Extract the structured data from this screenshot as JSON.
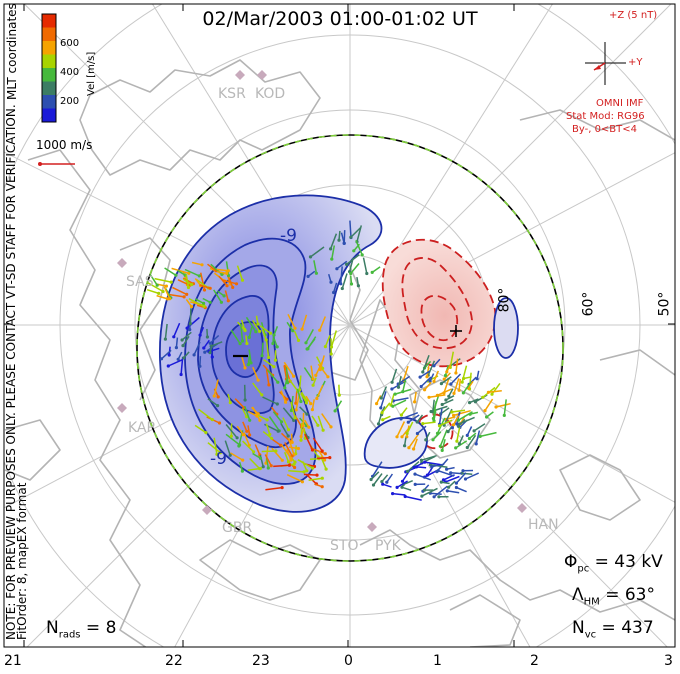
{
  "title": "02/Mar/2003 01:00-01:02 UT",
  "coordinates_label": "MLT coordinates",
  "note_line1": "NOTE: FOR PREVIEW PURPOSES ONLY. PLEASE CONTACT VT-SD STAFF FOR VERIFICATION.",
  "note_line2": "FitOrder: 8, mapEX format",
  "colorbar": {
    "label": "Vel [m/s]",
    "ticks": [
      "600",
      "400",
      "200"
    ],
    "colors": [
      "#e52a00",
      "#f06a00",
      "#f5a300",
      "#a8d400",
      "#46b93c",
      "#3c7d64",
      "#2d4fb0",
      "#1a1ad8"
    ]
  },
  "reference_vector": "1000 m/s",
  "imf": {
    "z_label": "+Z (5 nT)",
    "y_label": "+Y",
    "source": "OMNI IMF",
    "model": "Stat Mod: RG96",
    "condition": "By-, 0<BT<4"
  },
  "stations": [
    "KSR",
    "KOD",
    "SAS",
    "KAP",
    "GBR",
    "STO",
    "PYK",
    "HAN"
  ],
  "latitude_labels": [
    "60°",
    "50°",
    "80°"
  ],
  "contour_labels": [
    "-9",
    "-9"
  ],
  "potential_markers": {
    "min": "–",
    "max": "+"
  },
  "mlt_ticks": [
    "21",
    "22",
    "23",
    "0",
    "1",
    "2",
    "3"
  ],
  "stats": {
    "phi_pc": {
      "symbol": "Φ",
      "sub": "pc",
      "value": "= 43 kV"
    },
    "lambda_hm": {
      "symbol": "Λ",
      "sub": "HM",
      "value": "= 63°"
    },
    "n_vc": {
      "symbol": "N",
      "sub": "vc",
      "value": "= 437"
    },
    "n_rads": {
      "symbol": "N",
      "sub": "rads",
      "value": "= 8"
    }
  },
  "colors": {
    "negative_cell": "#1c2fa8",
    "positive_cell": "#cc2020",
    "boundary_dash": "#7fcf3a",
    "grid": "#c8c8c8",
    "coast": "#b4b4b4",
    "imf": "#d32020"
  }
}
